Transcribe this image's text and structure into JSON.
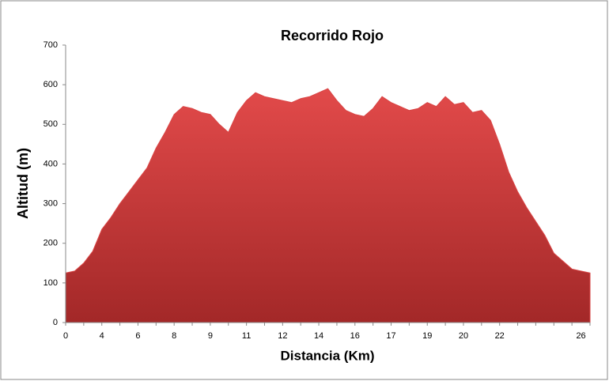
{
  "chart_data": {
    "type": "area",
    "title": "Recorrido Rojo",
    "x_label": "Distancia  (Km)",
    "y_label": "Altitud (m)",
    "categories": [
      "0",
      null,
      null,
      null,
      "4",
      null,
      null,
      null,
      "6",
      null,
      null,
      null,
      "8",
      null,
      null,
      null,
      "9",
      null,
      null,
      null,
      "11",
      null,
      null,
      null,
      "12",
      null,
      null,
      null,
      "14",
      null,
      null,
      null,
      "16",
      null,
      null,
      null,
      "17",
      null,
      null,
      null,
      "19",
      null,
      null,
      null,
      "20",
      null,
      null,
      null,
      "22",
      null,
      null,
      null,
      null,
      null,
      null,
      null,
      null,
      "26",
      null
    ],
    "series": [
      {
        "name": "Altitud",
        "color": "#d94444",
        "values": [
          125,
          130,
          150,
          180,
          235,
          265,
          300,
          330,
          360,
          390,
          440,
          480,
          525,
          545,
          540,
          530,
          525,
          500,
          480,
          530,
          560,
          580,
          570,
          565,
          560,
          555,
          565,
          570,
          580,
          590,
          560,
          535,
          525,
          520,
          540,
          570,
          555,
          545,
          535,
          540,
          555,
          545,
          570,
          550,
          555,
          530,
          535,
          510,
          450,
          380,
          330,
          290,
          255,
          220,
          175,
          155,
          135,
          130,
          125
        ]
      }
    ],
    "ylim": [
      0,
      700
    ],
    "yticks": [
      0,
      100,
      200,
      300,
      400,
      500,
      600,
      700
    ]
  }
}
